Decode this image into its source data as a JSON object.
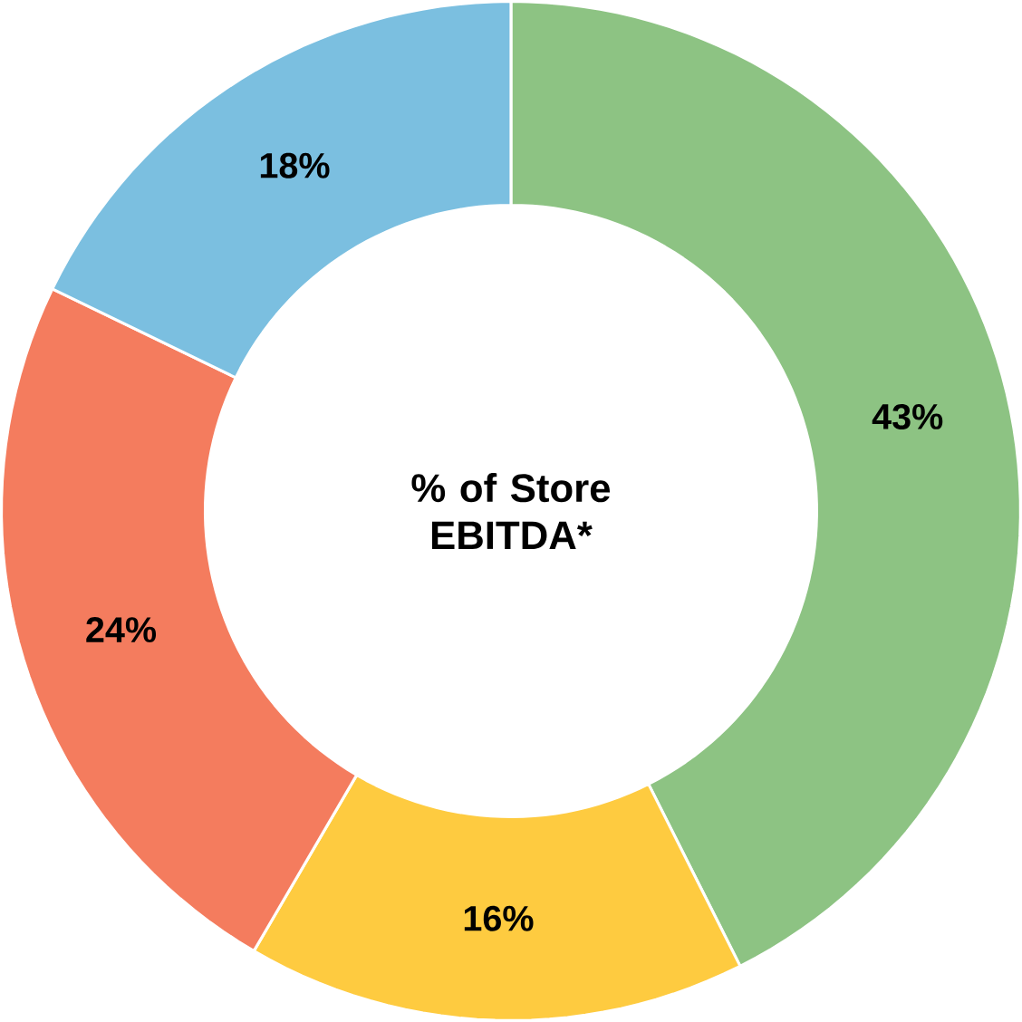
{
  "chart_data": {
    "type": "donut",
    "title": "% of Store EBITDA*",
    "categories": [
      null,
      null,
      null,
      null
    ],
    "values": [
      43,
      16,
      24,
      18
    ],
    "colors": [
      "#8dc383",
      "#fecb40",
      "#f47c5e",
      "#7bbfe0"
    ],
    "value_labels": [
      "43%",
      "16%",
      "24%",
      "18%"
    ]
  }
}
